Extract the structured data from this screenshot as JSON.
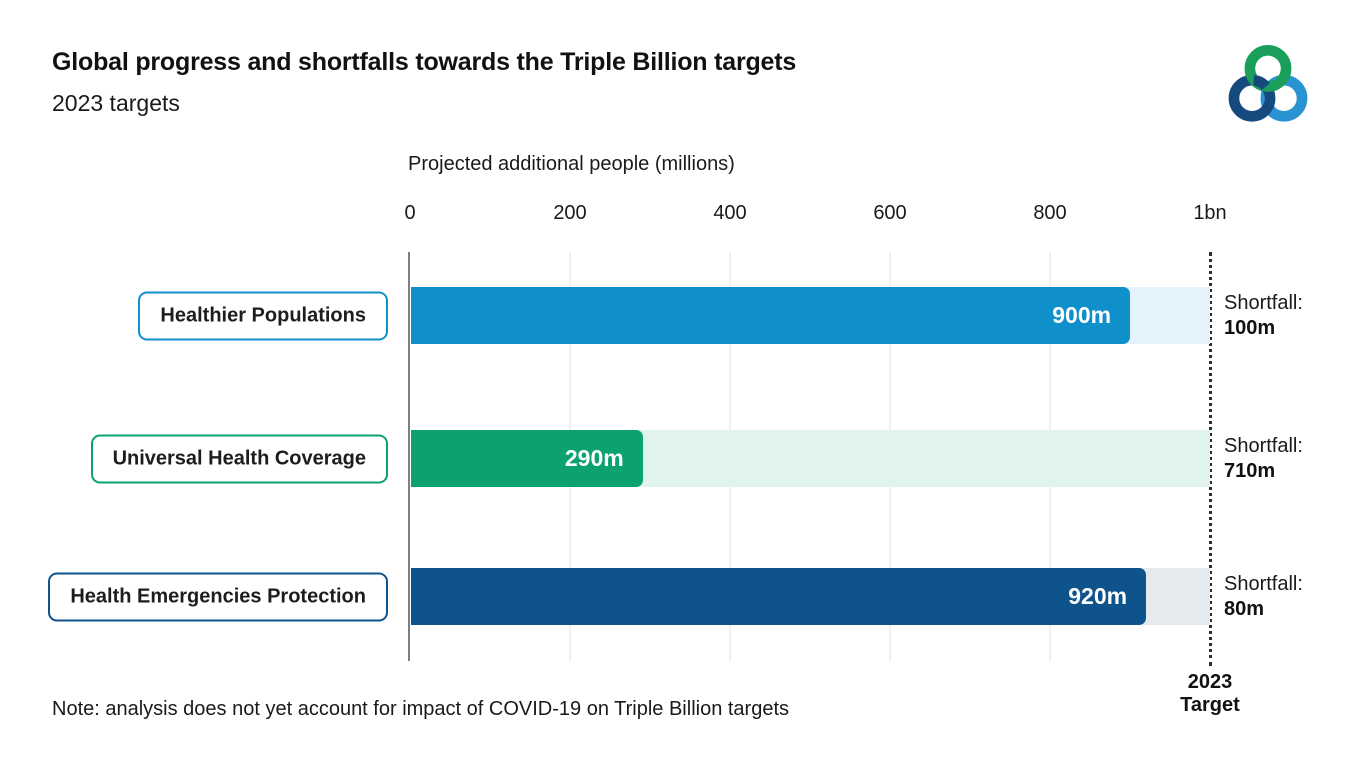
{
  "header": {
    "title": "Global progress and shortfalls towards the Triple Billion targets",
    "subtitle": "2023 targets"
  },
  "logo": {
    "name": "triple-billion-logo",
    "colors": {
      "green": "#1a9e5c",
      "dark_blue": "#154a7e",
      "light_blue": "#2a93d1"
    }
  },
  "chart_data": {
    "type": "bar",
    "orientation": "horizontal",
    "axis_title": "Projected additional people (millions)",
    "x_ticks": [
      "0",
      "200",
      "400",
      "600",
      "800",
      "1bn"
    ],
    "xlim": [
      0,
      1000
    ],
    "grid": "vertical-light",
    "target_line": {
      "value": 1000,
      "style": "dotted"
    },
    "rows": [
      {
        "label": "Healthier Populations",
        "value": 900,
        "value_label": "900m",
        "shortfall_title": "Shortfall:",
        "shortfall_value": "100m",
        "shortfall": 100,
        "bar_color": "#0f90cb",
        "track_color": "#e3f2fb"
      },
      {
        "label": "Universal Health Coverage",
        "value": 290,
        "value_label": "290m",
        "shortfall_title": "Shortfall:",
        "shortfall_value": "710m",
        "shortfall": 710,
        "bar_color": "#0ba170",
        "track_color": "#e1f4ec"
      },
      {
        "label": "Health Emergencies Protection",
        "value": 920,
        "value_label": "920m",
        "shortfall_title": "Shortfall:",
        "shortfall_value": "80m",
        "shortfall": 80,
        "bar_color": "#0e538c",
        "track_color": "#e5eaef"
      }
    ]
  },
  "target_label": {
    "line1": "2023",
    "line2": "Target"
  },
  "note": "Note: analysis does not yet account for impact of COVID-19 on Triple Billion targets"
}
